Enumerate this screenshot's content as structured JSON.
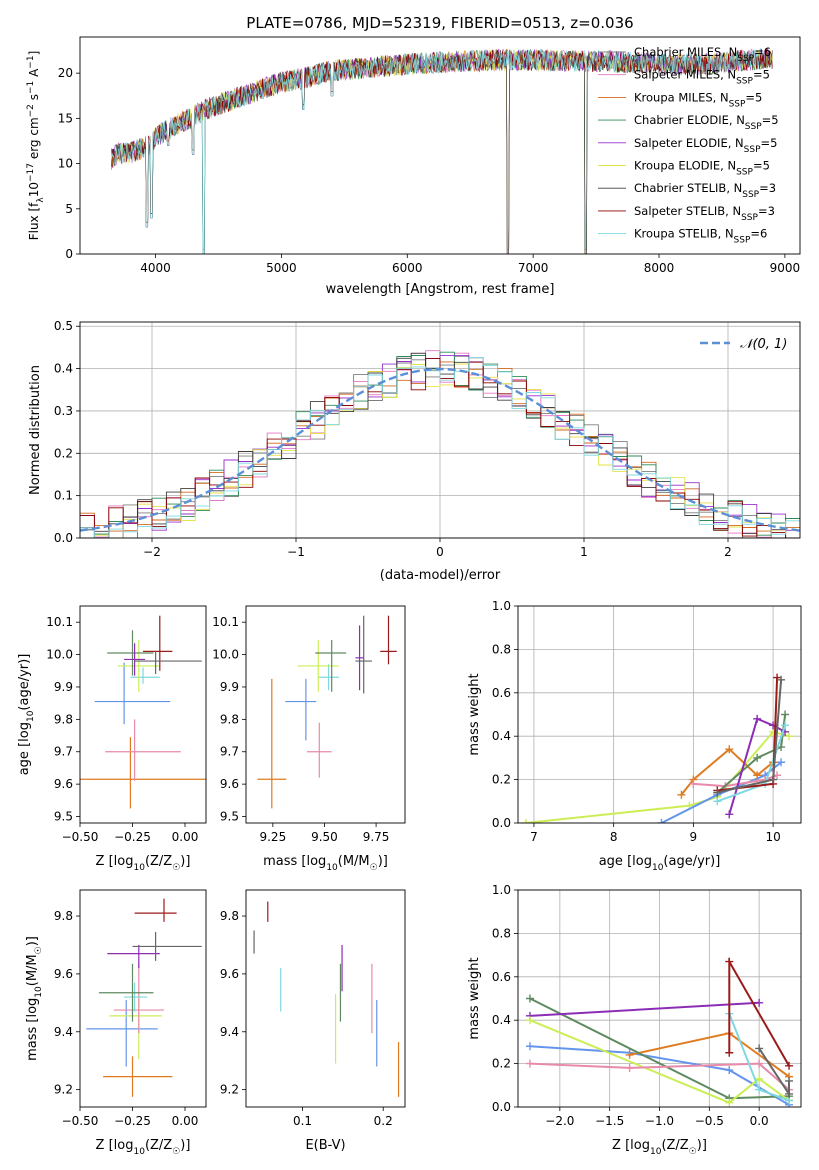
{
  "figure_title": "PLATE=0786, MJD=52319, FIBERID=0513, z=0.036",
  "colors": {
    "models": [
      "#7f7f7f",
      "#e377c2",
      "#d2691e",
      "#2e8b57",
      "#9932cc",
      "#e3e34a",
      "#404040",
      "#8b0000",
      "#7fd8e0"
    ],
    "fits": [
      "#6495ed",
      "#e07b20",
      "#5f8a5f",
      "#8b2db5",
      "#ccee55",
      "#e88aaa",
      "#7fd8e0",
      "#9b1b1b",
      "#666666"
    ]
  },
  "chart_data": [
    {
      "id": "spectrum",
      "type": "line",
      "title": "",
      "xlabel": "wavelength [Angstrom, rest frame]",
      "ylabel_main": "Flux [f",
      "ylabel_sub": "λ",
      "ylabel_mid": "10",
      "ylabel_exp1": "−17",
      "ylabel_mid2": " erg cm",
      "ylabel_exp2": "−2",
      "ylabel_mid3": " s",
      "ylabel_exp3": "−1",
      "ylabel_mid4": " A",
      "ylabel_exp4": "−1",
      "ylabel_end": "]",
      "xlim": [
        3400,
        9120
      ],
      "ylim": [
        0,
        24
      ],
      "xticks": [
        4000,
        5000,
        6000,
        7000,
        8000,
        9000
      ],
      "yticks": [
        0,
        5,
        10,
        15,
        20
      ],
      "legend": "upper-right",
      "legend_entries": [
        {
          "name": "Chabrier MILES",
          "n": "6"
        },
        {
          "name": "Salpeter MILES",
          "n": "5"
        },
        {
          "name": "Kroupa MILES",
          "n": "5"
        },
        {
          "name": "Chabrier ELODIE",
          "n": "5"
        },
        {
          "name": "Salpeter ELODIE",
          "n": "5"
        },
        {
          "name": "Kroupa ELODIE",
          "n": "5"
        },
        {
          "name": "Chabrier STELIB",
          "n": "3"
        },
        {
          "name": "Salpeter STELIB",
          "n": "3"
        },
        {
          "name": "Kroupa STELIB",
          "n": "6"
        }
      ],
      "legend_n_label": "N",
      "legend_n_sub": "SSP",
      "continuum": {
        "x": [
          3650,
          3700,
          3800,
          3950,
          4000,
          4200,
          4400,
          4600,
          5000,
          5200,
          5400,
          5600,
          6000,
          6400,
          6800,
          7200,
          7600,
          8000,
          8400,
          8800
        ],
        "y": [
          10.5,
          11.2,
          11.2,
          12.0,
          13.0,
          14.5,
          16.0,
          17.0,
          19.0,
          19.5,
          20.3,
          20.5,
          21.0,
          21.3,
          21.5,
          21.4,
          21.3,
          21.0,
          21.0,
          21.6
        ]
      },
      "dips": [
        {
          "x": 3933,
          "y": 3.0
        },
        {
          "x": 3968,
          "y": 4.0
        },
        {
          "x": 4101,
          "y": 12.0
        },
        {
          "x": 4300,
          "y": 11.0
        },
        {
          "x": 4380,
          "y": 0.0
        },
        {
          "x": 5175,
          "y": 16.0
        },
        {
          "x": 5400,
          "y": 17.5
        },
        {
          "x": 6800,
          "y": 0.0
        },
        {
          "x": 7420,
          "y": 0.0
        }
      ]
    },
    {
      "id": "residuals",
      "type": "histogram",
      "xlabel": "(data-model)/error",
      "ylabel": "Normed distribution",
      "xlim": [
        -2.5,
        2.5
      ],
      "ylim": [
        0,
        0.51
      ],
      "xticks": [
        -2,
        -1,
        0,
        1,
        2
      ],
      "yticks": [
        0,
        0.1,
        0.2,
        0.3,
        0.4,
        0.5
      ],
      "legend": "upper-right",
      "legend_entry": "𝒩(0, 1)",
      "grid": true,
      "bin_width": 0.1
    },
    {
      "id": "age-vs-Z",
      "type": "scatter",
      "xlabel_main": "Z [log",
      "xlabel_sub": "10",
      "xlabel_end": "(Z/Z",
      "xlabel_sun": "☉",
      "xlabel_close": ")]",
      "ylabel_main": "age  [log",
      "ylabel_sub": "10",
      "ylabel_end": "(age/yr)]",
      "xlim": [
        -0.5,
        0.1
      ],
      "ylim": [
        9.48,
        10.15
      ],
      "xticks": [
        -0.5,
        -0.25,
        0.0
      ],
      "yticks": [
        9.5,
        9.6,
        9.7,
        9.8,
        9.9,
        10.0,
        10.1
      ],
      "points": [
        {
          "x": -0.26,
          "y": 9.615,
          "xerr": [
            0.31,
            0.42
          ],
          "yerr": [
            0.09,
            0.13
          ],
          "c": 1
        },
        {
          "x": -0.24,
          "y": 9.7,
          "xerr": [
            0.14,
            0.22
          ],
          "yerr": [
            0.09,
            0.1
          ],
          "c": 5
        },
        {
          "x": -0.29,
          "y": 9.855,
          "xerr": [
            0.14,
            0.22
          ],
          "yerr": [
            0.07,
            0.12
          ],
          "c": 0
        },
        {
          "x": -0.2,
          "y": 9.93,
          "xerr": [
            0.06,
            0.08
          ],
          "yerr": [
            0.02,
            0.03
          ],
          "c": 6
        },
        {
          "x": -0.22,
          "y": 9.965,
          "xerr": [
            0.1,
            0.1
          ],
          "yerr": [
            0.08,
            0.08
          ],
          "c": 4
        },
        {
          "x": -0.25,
          "y": 10.005,
          "xerr": [
            0.12,
            0.1
          ],
          "yerr": [
            0.07,
            0.07
          ],
          "c": 2
        },
        {
          "x": -0.24,
          "y": 9.985,
          "xerr": [
            0.05,
            0.05
          ],
          "yerr": [
            0.05,
            0.05
          ],
          "c": 3
        },
        {
          "x": -0.12,
          "y": 10.01,
          "xerr": [
            0.08,
            0.06
          ],
          "yerr": [
            0.06,
            0.11
          ],
          "c": 7
        },
        {
          "x": -0.14,
          "y": 9.98,
          "xerr": [
            0.1,
            0.22
          ],
          "yerr": [
            0.04,
            0.03
          ],
          "c": 8
        }
      ]
    },
    {
      "id": "age-vs-mass",
      "type": "scatter",
      "xlabel_main": "mass [log",
      "xlabel_sub": "10",
      "xlabel_end": "(M/M",
      "xlabel_sun": "☉",
      "xlabel_close": ")]",
      "xlim": [
        9.12,
        9.89
      ],
      "ylim": [
        9.48,
        10.15
      ],
      "xticks": [
        9.25,
        9.5,
        9.75
      ],
      "yticks": [
        9.5,
        9.6,
        9.7,
        9.8,
        9.9,
        10.0,
        10.1
      ],
      "points": [
        {
          "x": 9.245,
          "y": 9.615,
          "xerr": [
            0.07,
            0.07
          ],
          "yerr": [
            0.09,
            0.31
          ],
          "c": 1
        },
        {
          "x": 9.475,
          "y": 9.7,
          "xerr": [
            0.06,
            0.06
          ],
          "yerr": [
            0.08,
            0.09
          ],
          "c": 5
        },
        {
          "x": 9.41,
          "y": 9.855,
          "xerr": [
            0.1,
            0.05
          ],
          "yerr": [
            0.12,
            0.07
          ],
          "c": 0
        },
        {
          "x": 9.52,
          "y": 9.93,
          "xerr": [
            0.05,
            0.05
          ],
          "yerr": [
            0.04,
            0.04
          ],
          "c": 6
        },
        {
          "x": 9.47,
          "y": 9.965,
          "xerr": [
            0.1,
            0.1
          ],
          "yerr": [
            0.08,
            0.08
          ],
          "c": 4
        },
        {
          "x": 9.535,
          "y": 10.005,
          "xerr": [
            0.08,
            0.07
          ],
          "yerr": [
            0.12,
            0.04
          ],
          "c": 2
        },
        {
          "x": 9.67,
          "y": 9.99,
          "xerr": [
            0.02,
            0.02
          ],
          "yerr": [
            0.1,
            0.1
          ],
          "c": 3
        },
        {
          "x": 9.81,
          "y": 10.01,
          "xerr": [
            0.04,
            0.04
          ],
          "yerr": [
            0.04,
            0.11
          ],
          "c": 7
        },
        {
          "x": 9.69,
          "y": 9.98,
          "xerr": [
            0.04,
            0.04
          ],
          "yerr": [
            0.1,
            0.14
          ],
          "c": 8
        }
      ]
    },
    {
      "id": "weight-vs-age",
      "type": "line",
      "xlabel_main": "age  [log",
      "xlabel_sub": "10",
      "xlabel_end": "(age/yr)]",
      "ylabel": "mass weight",
      "xlim": [
        6.8,
        10.35
      ],
      "ylim": [
        0,
        1.0
      ],
      "xticks": [
        7,
        8,
        9,
        10
      ],
      "yticks": [
        0.0,
        0.2,
        0.4,
        0.6,
        0.8,
        1.0
      ],
      "series": [
        {
          "c": 4,
          "x": [
            6.9,
            8.95,
            9.3,
            10.0,
            10.2
          ],
          "y": [
            0.0,
            0.08,
            0.12,
            0.42,
            0.4
          ]
        },
        {
          "c": 0,
          "x": [
            8.6,
            9.3,
            9.9,
            10.1
          ],
          "y": [
            0.0,
            0.13,
            0.22,
            0.28
          ]
        },
        {
          "c": 1,
          "x": [
            8.85,
            9.0,
            9.45,
            9.8,
            10.0
          ],
          "y": [
            0.13,
            0.2,
            0.34,
            0.22,
            0.28
          ]
        },
        {
          "c": 5,
          "x": [
            9.0,
            9.4,
            9.9,
            10.05
          ],
          "y": [
            0.18,
            0.17,
            0.2,
            0.22
          ]
        },
        {
          "c": 2,
          "x": [
            9.3,
            9.8,
            10.1,
            10.15
          ],
          "y": [
            0.14,
            0.3,
            0.35,
            0.5
          ]
        },
        {
          "c": 3,
          "x": [
            9.45,
            9.8,
            10.0,
            10.15
          ],
          "y": [
            0.04,
            0.48,
            0.45,
            0.42
          ]
        },
        {
          "c": 6,
          "x": [
            9.3,
            9.9,
            10.15
          ],
          "y": [
            0.1,
            0.18,
            0.45
          ]
        },
        {
          "c": 7,
          "x": [
            9.3,
            10.0,
            10.05
          ],
          "y": [
            0.15,
            0.18,
            0.67
          ]
        },
        {
          "c": 8,
          "x": [
            9.3,
            10.0,
            10.1
          ],
          "y": [
            0.14,
            0.2,
            0.66
          ]
        }
      ]
    },
    {
      "id": "mass-vs-Z",
      "type": "scatter",
      "xlabel_main": "Z [log",
      "xlabel_sub": "10",
      "xlabel_end": "(Z/Z",
      "xlabel_sun": "☉",
      "xlabel_close": ")]",
      "ylabel_main": "mass [log",
      "ylabel_sub": "10",
      "ylabel_end": "(M/M",
      "ylabel_sun": "☉",
      "ylabel_close": ")]",
      "xlim": [
        -0.5,
        0.1
      ],
      "ylim": [
        9.14,
        9.89
      ],
      "xticks": [
        -0.5,
        -0.25,
        0.0
      ],
      "yticks": [
        9.2,
        9.4,
        9.6,
        9.8
      ],
      "points": [
        {
          "x": -0.25,
          "y": 9.245,
          "xerr": [
            0.14,
            0.19
          ],
          "yerr": [
            0.07,
            0.07
          ],
          "c": 1
        },
        {
          "x": -0.28,
          "y": 9.41,
          "xerr": [
            0.19,
            0.15
          ],
          "yerr": [
            0.13,
            0.1
          ],
          "c": 0
        },
        {
          "x": -0.22,
          "y": 9.455,
          "xerr": [
            0.14,
            0.11
          ],
          "yerr": [
            0.15,
            0.06
          ],
          "c": 4
        },
        {
          "x": -0.22,
          "y": 9.475,
          "xerr": [
            0.12,
            0.12
          ],
          "yerr": [
            0.08,
            0.16
          ],
          "c": 5
        },
        {
          "x": -0.24,
          "y": 9.52,
          "xerr": [
            0.05,
            0.06
          ],
          "yerr": [
            0.05,
            0.05
          ],
          "c": 6
        },
        {
          "x": -0.25,
          "y": 9.535,
          "xerr": [
            0.16,
            0.1
          ],
          "yerr": [
            0.1,
            0.1
          ],
          "c": 2
        },
        {
          "x": -0.22,
          "y": 9.67,
          "xerr": [
            0.15,
            0.1
          ],
          "yerr": [
            0.05,
            0.03
          ],
          "c": 3
        },
        {
          "x": -0.14,
          "y": 9.695,
          "xerr": [
            0.11,
            0.22
          ],
          "yerr": [
            0.05,
            0.05
          ],
          "c": 8
        },
        {
          "x": -0.1,
          "y": 9.81,
          "xerr": [
            0.14,
            0.06
          ],
          "yerr": [
            0.03,
            0.05
          ],
          "c": 7
        }
      ]
    },
    {
      "id": "mass-vs-EBV",
      "type": "scatter",
      "xlabel": "E(B-V)",
      "xlim": [
        0.03,
        0.227
      ],
      "ylim": [
        9.14,
        9.89
      ],
      "xticks": [
        0.1,
        0.2
      ],
      "yticks": [
        9.2,
        9.4,
        9.6,
        9.8
      ],
      "points": [
        {
          "x": 0.219,
          "y": 9.245,
          "xerr": [
            0,
            0
          ],
          "yerr": [
            0.07,
            0.12
          ],
          "c": 1
        },
        {
          "x": 0.192,
          "y": 9.41,
          "xerr": [
            0,
            0
          ],
          "yerr": [
            0.13,
            0.1
          ],
          "c": 0
        },
        {
          "x": 0.141,
          "y": 9.41,
          "xerr": [
            0,
            0
          ],
          "yerr": [
            0.12,
            0.12
          ],
          "c": 4
        },
        {
          "x": 0.186,
          "y": 9.475,
          "xerr": [
            0,
            0
          ],
          "yerr": [
            0.08,
            0.16
          ],
          "c": 5
        },
        {
          "x": 0.073,
          "y": 9.52,
          "xerr": [
            0,
            0
          ],
          "yerr": [
            0.05,
            0.1
          ],
          "c": 6
        },
        {
          "x": 0.147,
          "y": 9.535,
          "xerr": [
            0,
            0
          ],
          "yerr": [
            0.1,
            0.1
          ],
          "c": 2
        },
        {
          "x": 0.149,
          "y": 9.62,
          "xerr": [
            0,
            0
          ],
          "yerr": [
            0.08,
            0.08
          ],
          "c": 3
        },
        {
          "x": 0.04,
          "y": 9.71,
          "xerr": [
            0,
            0
          ],
          "yerr": [
            0.04,
            0.04
          ],
          "c": 8
        },
        {
          "x": 0.057,
          "y": 9.81,
          "xerr": [
            0,
            0
          ],
          "yerr": [
            0.03,
            0.04
          ],
          "c": 7
        }
      ]
    },
    {
      "id": "weight-vs-Z",
      "type": "line",
      "xlabel_main": "Z [log",
      "xlabel_sub": "10",
      "xlabel_end": "(Z/Z",
      "xlabel_sun": "☉",
      "xlabel_close": ")]",
      "ylabel": "mass weight",
      "xlim": [
        -2.42,
        0.42
      ],
      "ylim": [
        0,
        1.0
      ],
      "xticks": [
        -2.0,
        -1.5,
        -1.0,
        -0.5,
        0.0
      ],
      "yticks": [
        0.0,
        0.2,
        0.4,
        0.6,
        0.8,
        1.0
      ],
      "series": [
        {
          "c": 0,
          "x": [
            -2.3,
            -1.3,
            -0.3,
            0.3
          ],
          "y": [
            0.28,
            0.25,
            0.17,
            0.01
          ]
        },
        {
          "c": 1,
          "x": [
            -1.3,
            -0.3,
            0.3
          ],
          "y": [
            0.24,
            0.34,
            0.14
          ]
        },
        {
          "c": 2,
          "x": [
            -2.3,
            -0.3,
            0.3
          ],
          "y": [
            0.5,
            0.04,
            0.05
          ]
        },
        {
          "c": 3,
          "x": [
            -2.3,
            0.0
          ],
          "y": [
            0.42,
            0.48
          ]
        },
        {
          "c": 4,
          "x": [
            -2.3,
            -0.3,
            0.0,
            0.3
          ],
          "y": [
            0.4,
            0.02,
            0.13,
            0.03
          ]
        },
        {
          "c": 5,
          "x": [
            -2.3,
            -1.3,
            0.0,
            0.3
          ],
          "y": [
            0.2,
            0.18,
            0.2,
            0.08
          ]
        },
        {
          "c": 6,
          "x": [
            -0.3,
            0.0,
            0.3
          ],
          "y": [
            0.43,
            0.08,
            0.03
          ]
        },
        {
          "c": 7,
          "x": [
            -0.3,
            -0.3,
            0.3
          ],
          "y": [
            0.25,
            0.67,
            0.19
          ]
        },
        {
          "c": 8,
          "x": [
            0.0,
            0.3,
            0.3
          ],
          "y": [
            0.27,
            0.06,
            0.12
          ]
        }
      ]
    }
  ]
}
